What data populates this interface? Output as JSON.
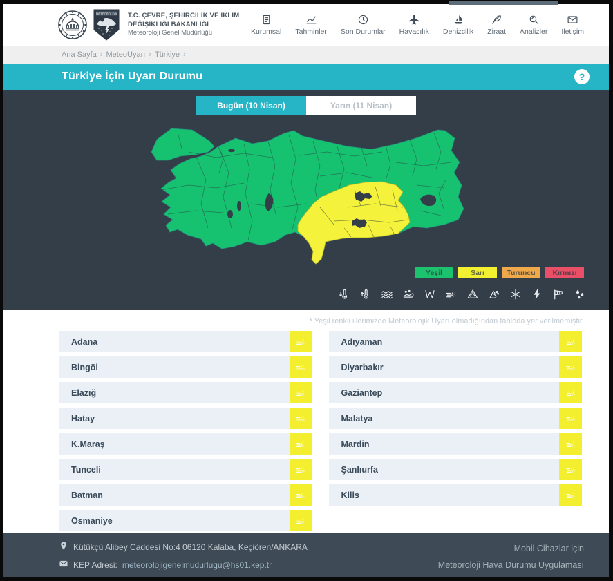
{
  "theme": {
    "cyan": "#26b4c7",
    "dark_section": "#333e49",
    "footer_bg": "#3e4a55",
    "row_bg": "#eaf0f5",
    "warning_yellow": "#f3ee2e"
  },
  "header": {
    "ministry_line1": "T.C. ÇEVRE, ŞEHİRCİLİK VE İKLİM DEĞİŞİKLİĞİ BAKANLIĞI",
    "ministry_line2": "Meteoroloji Genel Müdürlüğü",
    "nav": [
      {
        "label": "Kurumsal",
        "icon": "journal-icon"
      },
      {
        "label": "Tahminler",
        "icon": "trend-chart-icon"
      },
      {
        "label": "Son Durumlar",
        "icon": "clock-icon"
      },
      {
        "label": "Havacılık",
        "icon": "plane-icon"
      },
      {
        "label": "Denizcilik",
        "icon": "sailboat-icon"
      },
      {
        "label": "Ziraat",
        "icon": "feather-icon"
      },
      {
        "label": "Analizler",
        "icon": "magnifier-icon"
      },
      {
        "label": "İletişim",
        "icon": "envelope-icon"
      }
    ]
  },
  "breadcrumb": {
    "items": [
      "Ana Sayfa",
      "MeteoUyarı",
      "Türkiye"
    ],
    "separator": "›"
  },
  "page": {
    "title": "Türkiye İçin Uyarı Durumu",
    "help_glyph": "?"
  },
  "tabs": [
    {
      "label": "Bugün (10 Nisan)",
      "active": true
    },
    {
      "label": "Yarın (11 Nisan)",
      "active": false
    }
  ],
  "map": {
    "colors": {
      "no_warning": "#16c16f",
      "yellow_warning": "#f4f23a",
      "water": "#333e49",
      "border": "#2c3742"
    }
  },
  "legend": [
    {
      "label": "Yeşil",
      "color": "#1dc26e"
    },
    {
      "label": "Sarı",
      "color": "#f3f032"
    },
    {
      "label": "Turuncu",
      "color": "#efa94a"
    },
    {
      "label": "Kırmızı",
      "color": "#e94f67"
    }
  ],
  "warning_icon_row": [
    "low-temperature-icon",
    "high-temperature-icon",
    "sea-wave-icon",
    "agricultural-frost-icon",
    "fohn-wind-icon",
    "dust-storm-icon",
    "avalanche-icon",
    "landslide-icon",
    "snow-icon",
    "lightning-icon",
    "windsock-icon",
    "rain-icon"
  ],
  "note": "* Yeşil renkli illerimizde Meteorolojik Uyarı olmadığından tabloda yer verilmemiştir.",
  "warnings": {
    "warning_icon": "dust-storm-icon",
    "left_column": [
      "Adana",
      "Bingöl",
      "Elazığ",
      "Hatay",
      "K.Maraş",
      "Tunceli",
      "Batman",
      "Osmaniye"
    ],
    "right_column": [
      "Adıyaman",
      "Diyarbakır",
      "Gaziantep",
      "Malatya",
      "Mardin",
      "Şanlıurfa",
      "Kilis"
    ]
  },
  "footer": {
    "address": "Kütükçü Alibey Caddesi No:4 06120 Kalaba, Keçiören/ANKARA",
    "kep_label": "KEP Adresi:",
    "kep_value": "meteorolojigenelmudurlugu@hs01.kep.tr",
    "mobile_line1": "Mobil Cihazlar için",
    "mobile_line2": "Meteoroloji Hava Durumu Uygulaması"
  }
}
